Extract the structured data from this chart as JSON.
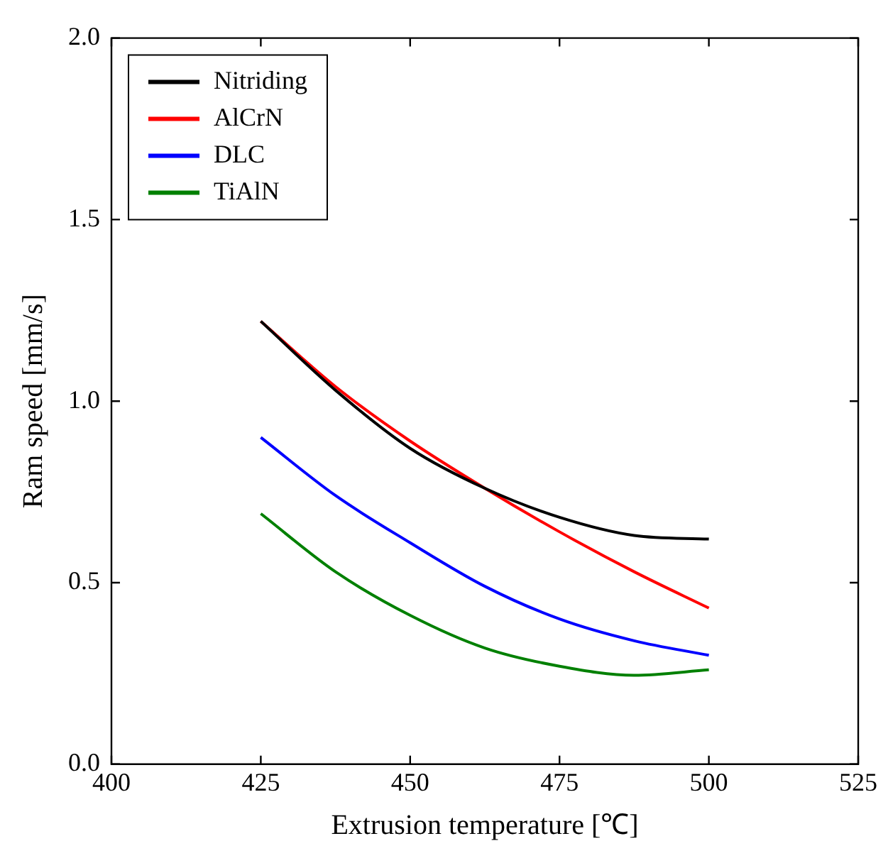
{
  "chart_data": {
    "type": "line",
    "xlabel": "Extrusion temperature [℃]",
    "ylabel": "Ram speed [mm/s]",
    "x": [
      425,
      437.5,
      450,
      462.5,
      475,
      487.5,
      500
    ],
    "series": [
      {
        "name": "Nitriding",
        "color": "#000000",
        "values": [
          1.22,
          1.03,
          0.87,
          0.76,
          0.68,
          0.63,
          0.62
        ]
      },
      {
        "name": "AlCrN",
        "color": "#ff0000",
        "values": [
          1.22,
          1.04,
          0.89,
          0.76,
          0.64,
          0.53,
          0.43
        ]
      },
      {
        "name": "DLC",
        "color": "#0000ff",
        "values": [
          0.9,
          0.74,
          0.61,
          0.49,
          0.4,
          0.34,
          0.3
        ]
      },
      {
        "name": "TiAlN",
        "color": "#008000",
        "values": [
          0.69,
          0.53,
          0.41,
          0.32,
          0.27,
          0.245,
          0.26
        ]
      }
    ],
    "xlim": [
      400,
      525
    ],
    "xticks": [
      400,
      425,
      450,
      475,
      500,
      525
    ],
    "ylim": [
      0,
      2
    ],
    "yticks": [
      {
        "value": 0,
        "label": "0.0"
      },
      0.5,
      {
        "value": 1,
        "label": "1.0"
      },
      1.5,
      {
        "value": 2,
        "label": "2.0"
      }
    ],
    "grid": false,
    "legend": "top left",
    "marker": "none",
    "line_style": "solid"
  }
}
